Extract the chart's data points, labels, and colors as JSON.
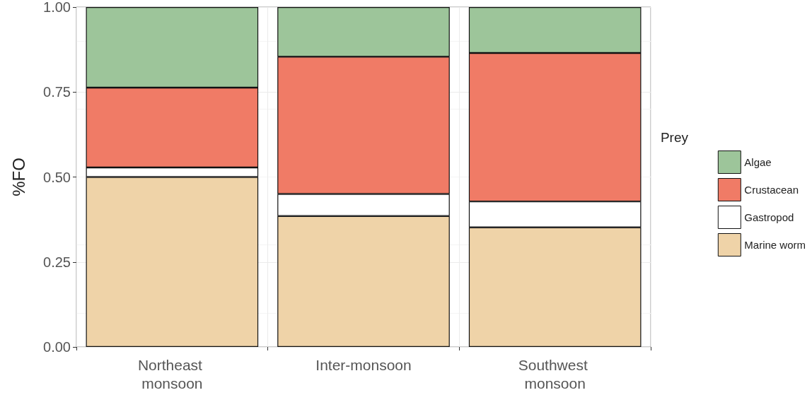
{
  "chart_data": {
    "type": "bar",
    "stacked": true,
    "ylabel": "%FO",
    "legend_title": "Prey",
    "legend": "right",
    "grid": true,
    "categories": [
      "Northeast monsoon",
      "Inter-monsoon",
      "Southwest monsoon"
    ],
    "series": [
      {
        "name": "Marine worm",
        "color": "#efd3a8",
        "values": [
          0.5,
          0.385,
          0.352
        ]
      },
      {
        "name": "Gastropod",
        "color": "#ffffff",
        "values": [
          0.028,
          0.065,
          0.076
        ]
      },
      {
        "name": "Crustacean",
        "color": "#f07b66",
        "values": [
          0.235,
          0.404,
          0.437
        ]
      },
      {
        "name": "Algae",
        "color": "#9dc59a",
        "values": [
          0.237,
          0.146,
          0.135
        ]
      }
    ],
    "ylim": [
      0,
      1
    ],
    "yticks": [
      {
        "value": 0,
        "label": "0.00"
      },
      {
        "value": 0.25,
        "label": "0.25"
      },
      {
        "value": 0.5,
        "label": "0.50"
      },
      {
        "value": 0.75,
        "label": "0.75"
      },
      {
        "value": 1,
        "label": "1.00"
      }
    ]
  }
}
